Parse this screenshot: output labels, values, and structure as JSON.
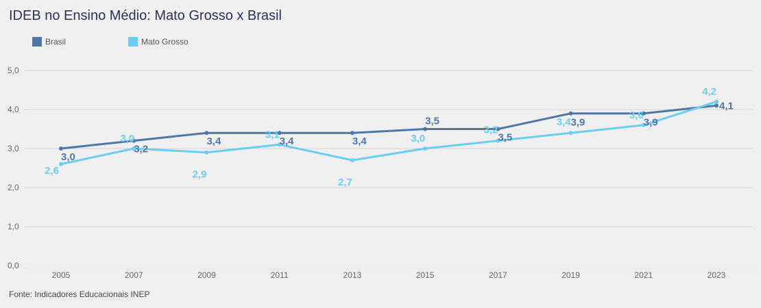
{
  "title": "IDEB no Ensino Médio: Mato Grosso x Brasil",
  "footer": "Fonte: Indicadores Educacionais INEP",
  "legend": [
    {
      "label": "Brasil",
      "color": "#4f77a6"
    },
    {
      "label": "Mato Grosso",
      "color": "#6ccdf2"
    }
  ],
  "chart_data": {
    "type": "line",
    "title": "IDEB no Ensino Médio: Mato Grosso x Brasil",
    "xlabel": "",
    "ylabel": "",
    "categories": [
      "2005",
      "2007",
      "2009",
      "2011",
      "2013",
      "2015",
      "2017",
      "2019",
      "2021",
      "2023"
    ],
    "series": [
      {
        "name": "Brasil",
        "color": "#4f77a6",
        "values": [
          3.0,
          3.2,
          3.4,
          3.4,
          3.4,
          3.5,
          3.5,
          3.9,
          3.9,
          4.1
        ],
        "labels": [
          "3,0",
          "3,2",
          "3,4",
          "3,4",
          "3,4",
          "3,5",
          "3,5",
          "3,9",
          "3,9",
          "4,1"
        ]
      },
      {
        "name": "Mato Grosso",
        "color": "#6ccdf2",
        "values": [
          2.6,
          3.0,
          2.9,
          3.1,
          2.7,
          3.0,
          3.2,
          3.4,
          3.6,
          4.2
        ],
        "labels": [
          "2,6",
          "3,0",
          "2,9",
          "3,1",
          "2,7",
          "3,0",
          "3,2",
          "3,4",
          "3,6",
          "4,2"
        ]
      }
    ],
    "ylim": [
      0,
      5
    ],
    "yticks": [
      0,
      1,
      2,
      3,
      4,
      5
    ],
    "ytick_labels": [
      "0,0",
      "1,0",
      "2,0",
      "3,0",
      "4,0",
      "5,0"
    ],
    "grid": true,
    "legend_position": "top-left"
  }
}
